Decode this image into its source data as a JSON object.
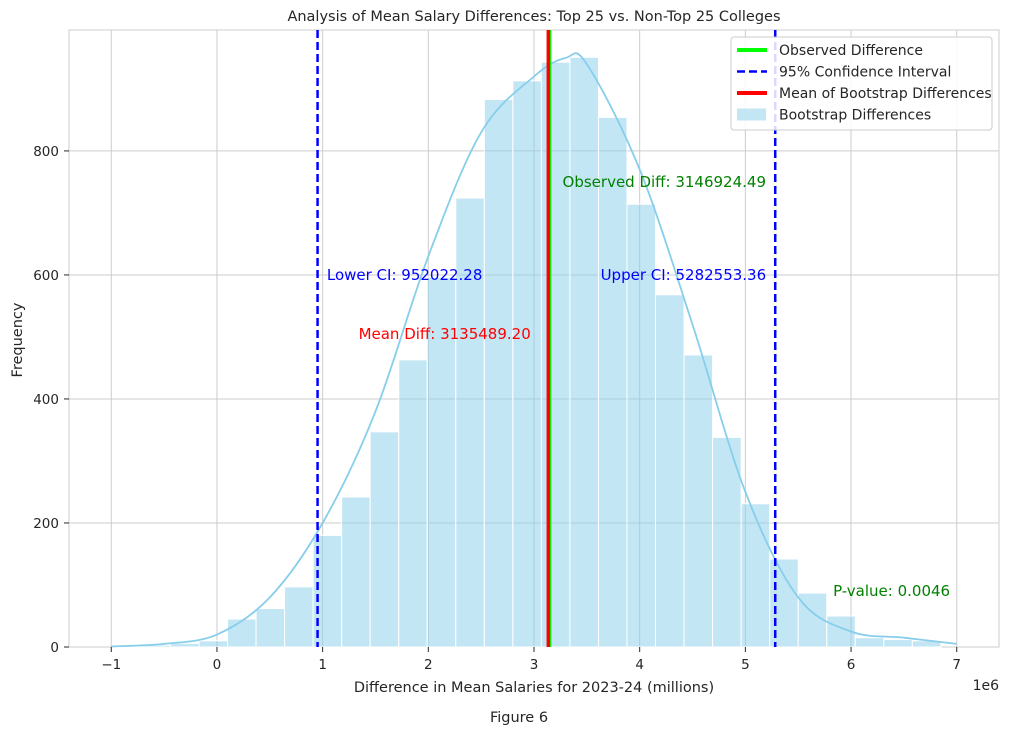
{
  "chart_data": {
    "type": "bar",
    "title": "Analysis of Mean Salary Differences: Top 25 vs. Non-Top 25 Colleges",
    "xlabel": "Difference in Mean Salaries for 2023-24 (millions)",
    "ylabel": "Frequency",
    "x_offset_label": "1e6",
    "caption": "Figure 6",
    "xlim": [
      -1.4,
      7.4
    ],
    "ylim": [
      0,
      995
    ],
    "x_ticks": [
      -1,
      0,
      1,
      2,
      3,
      4,
      5,
      6,
      7
    ],
    "x_tick_labels": [
      "−1",
      "0",
      "1",
      "2",
      "3",
      "4",
      "5",
      "6",
      "7"
    ],
    "y_ticks": [
      0,
      200,
      400,
      600,
      800
    ],
    "y_tick_labels": [
      "0",
      "200",
      "400",
      "600",
      "800"
    ],
    "grid": true,
    "legend_position": "top-right",
    "histogram": {
      "name": "Bootstrap Differences",
      "color": "#87ceeb",
      "bin_width": 0.27,
      "bin_lefts": [
        -0.98,
        -0.71,
        -0.44,
        -0.17,
        0.1,
        0.37,
        0.64,
        0.91,
        1.18,
        1.45,
        1.72,
        1.99,
        2.26,
        2.53,
        2.8,
        3.07,
        3.34,
        3.61,
        3.88,
        4.15,
        4.42,
        4.69,
        4.96,
        5.23,
        5.5,
        5.77,
        6.04,
        6.31,
        6.58
      ],
      "counts": [
        2,
        3,
        6,
        10,
        45,
        62,
        97,
        180,
        242,
        347,
        463,
        596,
        724,
        883,
        913,
        943,
        951,
        854,
        714,
        568,
        471,
        338,
        231,
        142,
        87,
        50,
        15,
        12,
        10
      ]
    },
    "kde": {
      "color": "#87ceeb",
      "x": [
        -1.0,
        -0.5,
        0.0,
        0.5,
        1.0,
        1.5,
        2.0,
        2.5,
        3.0,
        3.3,
        3.5,
        4.0,
        4.5,
        5.0,
        5.5,
        6.0,
        6.5,
        7.0
      ],
      "y": [
        1,
        5,
        20,
        80,
        200,
        380,
        630,
        830,
        920,
        950,
        940,
        770,
        520,
        250,
        80,
        25,
        15,
        5
      ]
    },
    "observed_difference": {
      "name": "Observed Difference",
      "value": 3.14692449,
      "color": "#00ff00"
    },
    "confidence_interval": {
      "name": "95% Confidence Interval",
      "lower": 0.95202228,
      "upper": 5.28255336,
      "color": "#0000ff"
    },
    "mean_difference": {
      "name": "Mean of Bootstrap Differences",
      "value": 3.1354892,
      "color": "#ff0000"
    },
    "annotations": [
      {
        "text": "Observed Diff: 3146924.49",
        "x": 3.27,
        "y": 750,
        "color": "#008000"
      },
      {
        "text": "Lower CI: 952022.28",
        "x": 1.04,
        "y": 600,
        "color": "#0000ff"
      },
      {
        "text": "Upper CI: 5282553.36",
        "x": 3.63,
        "y": 600,
        "color": "#0000ff"
      },
      {
        "text": "Mean Diff: 3135489.20",
        "x": 1.34,
        "y": 505,
        "color": "#ff0000"
      },
      {
        "text": "P-value: 0.0046",
        "x": 5.83,
        "y": 90,
        "color": "#008000"
      }
    ],
    "legend": [
      {
        "label": "Observed Difference",
        "style": "solid-line",
        "color": "#00ff00"
      },
      {
        "label": "95% Confidence Interval",
        "style": "dashed-line",
        "color": "#0000ff"
      },
      {
        "label": "Mean of Bootstrap Differences",
        "style": "solid-line",
        "color": "#ff0000"
      },
      {
        "label": "Bootstrap Differences",
        "style": "patch",
        "color": "#87ceeb"
      }
    ]
  }
}
